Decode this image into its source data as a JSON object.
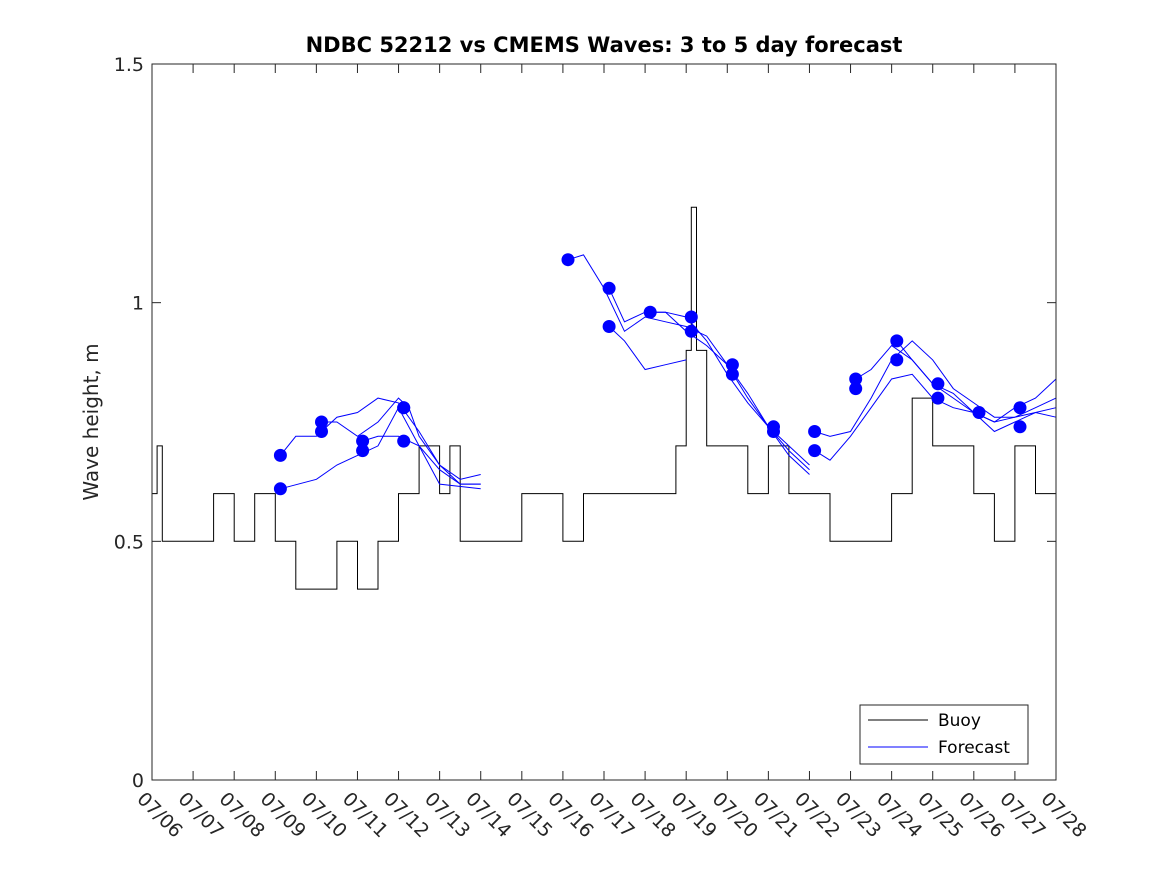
{
  "chart_data": {
    "type": "line",
    "title": "NDBC 52212 vs CMEMS Waves: 3 to 5 day forecast",
    "xlabel": "",
    "ylabel": "Wave height, m",
    "x_type": "date",
    "xlim": [
      "07/06",
      "07/28"
    ],
    "ylim": [
      0,
      1.5
    ],
    "x_tick_labels": [
      "07/06",
      "07/07",
      "07/08",
      "07/09",
      "07/10",
      "07/11",
      "07/12",
      "07/13",
      "07/14",
      "07/15",
      "07/16",
      "07/17",
      "07/18",
      "07/19",
      "07/20",
      "07/21",
      "07/22",
      "07/23",
      "07/24",
      "07/25",
      "07/26",
      "07/27",
      "07/28"
    ],
    "y_ticks": [
      0,
      0.5,
      1,
      1.5
    ],
    "y_tick_labels": [
      "0",
      "0.5",
      "1",
      "1.5"
    ],
    "legend": {
      "position": "bottom-right",
      "entries": [
        "Buoy",
        "Forecast"
      ]
    },
    "colors": {
      "buoy": "#000000",
      "forecast": "#0000ff",
      "marker": "#0000ff"
    },
    "series": [
      {
        "name": "Buoy",
        "x": [
          "07/06 00:00",
          "07/06 03:00",
          "07/06 06:00",
          "07/06 12:00",
          "07/07 00:00",
          "07/07 12:00",
          "07/08 00:00",
          "07/08 12:00",
          "07/09 00:00",
          "07/09 12:00",
          "07/10 00:00",
          "07/10 12:00",
          "07/11 00:00",
          "07/11 12:00",
          "07/12 00:00",
          "07/12 12:00",
          "07/13 00:00",
          "07/13 06:00",
          "07/13 12:00",
          "07/14 00:00",
          "07/14 12:00",
          "07/15 00:00",
          "07/15 12:00",
          "07/16 00:00",
          "07/16 12:00",
          "07/17 00:00",
          "07/17 12:00",
          "07/18 00:00",
          "07/18 12:00",
          "07/18 18:00",
          "07/19 00:00",
          "07/19 03:00",
          "07/19 06:00",
          "07/19 12:00",
          "07/20 00:00",
          "07/20 12:00",
          "07/21 00:00",
          "07/21 12:00",
          "07/22 00:00",
          "07/22 12:00",
          "07/23 00:00",
          "07/23 12:00",
          "07/24 00:00",
          "07/24 12:00",
          "07/25 00:00",
          "07/25 12:00",
          "07/26 00:00",
          "07/26 12:00",
          "07/27 00:00",
          "07/27 12:00",
          "07/28 00:00"
        ],
        "y": [
          0.6,
          0.7,
          0.5,
          0.5,
          0.5,
          0.6,
          0.5,
          0.6,
          0.5,
          0.4,
          0.4,
          0.5,
          0.4,
          0.5,
          0.6,
          0.7,
          0.6,
          0.7,
          0.5,
          0.5,
          0.5,
          0.6,
          0.6,
          0.5,
          0.6,
          0.6,
          0.6,
          0.6,
          0.6,
          0.7,
          0.9,
          1.2,
          0.9,
          0.7,
          0.7,
          0.6,
          0.7,
          0.6,
          0.6,
          0.5,
          0.5,
          0.5,
          0.6,
          0.8,
          0.7,
          0.7,
          0.6,
          0.5,
          0.7,
          0.6,
          0.7
        ]
      },
      {
        "name": "Forecast",
        "segments": [
          {
            "x": [
              "07/09 03:00",
              "07/09 12:00",
              "07/10 00:00",
              "07/10 12:00",
              "07/11 00:00",
              "07/11 12:00",
              "07/12 00:00",
              "07/12 12:00",
              "07/13 00:00",
              "07/13 12:00",
              "07/14 00:00"
            ],
            "y": [
              0.68,
              0.72,
              0.72,
              0.76,
              0.77,
              0.8,
              0.79,
              0.73,
              0.66,
              0.62,
              0.62
            ]
          },
          {
            "x": [
              "07/09 03:00",
              "07/10 00:00",
              "07/10 12:00",
              "07/11 00:00",
              "07/11 12:00",
              "07/12 00:00",
              "07/12 12:00",
              "07/13 00:00",
              "07/14 00:00"
            ],
            "y": [
              0.61,
              0.63,
              0.66,
              0.68,
              0.7,
              0.78,
              0.7,
              0.62,
              0.61
            ]
          },
          {
            "x": [
              "07/10 03:00",
              "07/10 12:00",
              "07/11 00:00",
              "07/11 12:00",
              "07/12 00:00",
              "07/12 06:00",
              "07/12 12:00",
              "07/13 00:00",
              "07/13 12:00",
              "07/14 00:00"
            ],
            "y": [
              0.75,
              0.75,
              0.72,
              0.75,
              0.8,
              0.78,
              0.72,
              0.66,
              0.63,
              0.64
            ]
          },
          {
            "x": [
              "07/11 03:00",
              "07/11 12:00",
              "07/12 00:00",
              "07/12 12:00",
              "07/13 00:00",
              "07/13 12:00",
              "07/14 00:00"
            ],
            "y": [
              0.71,
              0.72,
              0.72,
              0.7,
              0.65,
              0.62,
              0.62
            ]
          },
          {
            "x": [
              "07/16 03:00",
              "07/16 12:00",
              "07/17 00:00",
              "07/17 12:00",
              "07/18 00:00",
              "07/18 12:00",
              "07/19 00:00",
              "07/19 12:00",
              "07/20 00:00",
              "07/20 12:00",
              "07/21 00:00",
              "07/21 12:00",
              "07/22 00:00"
            ],
            "y": [
              1.09,
              1.1,
              1.03,
              0.94,
              0.97,
              0.96,
              0.95,
              0.93,
              0.87,
              0.8,
              0.74,
              0.69,
              0.65
            ]
          },
          {
            "x": [
              "07/17 03:00",
              "07/17 12:00",
              "07/18 00:00",
              "07/18 12:00",
              "07/19 00:00"
            ],
            "y": [
              0.95,
              0.92,
              0.86,
              0.87,
              0.88
            ]
          },
          {
            "x": [
              "07/17 03:00",
              "07/17 12:00",
              "07/18 00:00",
              "07/18 12:00",
              "07/19 00:00",
              "07/19 12:00",
              "07/20 00:00",
              "07/20 12:00",
              "07/21 00:00",
              "07/21 12:00",
              "07/22 00:00"
            ],
            "y": [
              1.03,
              0.96,
              0.98,
              0.98,
              0.97,
              0.92,
              0.85,
              0.79,
              0.74,
              0.68,
              0.64
            ]
          },
          {
            "x": [
              "07/18 03:00",
              "07/18 12:00",
              "07/19 00:00",
              "07/19 12:00",
              "07/20 00:00",
              "07/20 12:00",
              "07/21 00:00",
              "07/21 12:00",
              "07/22 00:00"
            ],
            "y": [
              0.98,
              0.98,
              0.94,
              0.91,
              0.87,
              0.81,
              0.74,
              0.7,
              0.66
            ]
          },
          {
            "x": [
              "07/22 03:00",
              "07/22 12:00",
              "07/23 00:00",
              "07/23 12:00",
              "07/24 00:00",
              "07/24 12:00",
              "07/25 00:00",
              "07/25 12:00",
              "07/26 00:00",
              "07/26 12:00",
              "07/27 00:00",
              "07/27 12:00",
              "07/28 00:00"
            ],
            "y": [
              0.73,
              0.72,
              0.73,
              0.8,
              0.88,
              0.92,
              0.88,
              0.82,
              0.79,
              0.76,
              0.76,
              0.78,
              0.8
            ]
          },
          {
            "x": [
              "07/22 03:00",
              "07/22 12:00",
              "07/23 00:00",
              "07/23 12:00",
              "07/24 00:00",
              "07/24 12:00",
              "07/25 00:00",
              "07/25 12:00",
              "07/26 00:00",
              "07/26 12:00",
              "07/27 00:00",
              "07/27 12:00",
              "07/28 00:00"
            ],
            "y": [
              0.69,
              0.67,
              0.72,
              0.78,
              0.84,
              0.85,
              0.8,
              0.78,
              0.77,
              0.73,
              0.75,
              0.77,
              0.76
            ]
          },
          {
            "x": [
              "07/23 03:00",
              "07/23 12:00",
              "07/24 00:00",
              "07/24 12:00",
              "07/25 00:00",
              "07/25 12:00",
              "07/26 00:00",
              "07/26 12:00",
              "07/27 00:00",
              "07/27 12:00",
              "07/28 00:00"
            ],
            "y": [
              0.84,
              0.86,
              0.91,
              0.88,
              0.83,
              0.8,
              0.77,
              0.75,
              0.78,
              0.8,
              0.84
            ]
          },
          {
            "x": [
              "07/24 03:00",
              "07/24 12:00",
              "07/25 00:00",
              "07/25 12:00",
              "07/26 00:00",
              "07/26 12:00",
              "07/27 00:00",
              "07/27 12:00",
              "07/28 00:00"
            ],
            "y": [
              0.92,
              0.88,
              0.83,
              0.81,
              0.77,
              0.75,
              0.76,
              0.77,
              0.78
            ]
          }
        ]
      }
    ],
    "forecast_markers": {
      "x": [
        "07/09 03:00",
        "07/09 03:00",
        "07/10 03:00",
        "07/10 03:00",
        "07/11 03:00",
        "07/11 03:00",
        "07/12 03:00",
        "07/12 03:00",
        "07/12 03:00",
        "07/16 03:00",
        "07/17 03:00",
        "07/17 03:00",
        "07/18 03:00",
        "07/19 03:00",
        "07/19 03:00",
        "07/20 03:00",
        "07/20 03:00",
        "07/21 03:00",
        "07/21 03:00",
        "07/22 03:00",
        "07/22 03:00",
        "07/23 03:00",
        "07/23 03:00",
        "07/24 03:00",
        "07/24 03:00",
        "07/25 03:00",
        "07/25 03:00",
        "07/26 03:00",
        "07/27 03:00",
        "07/27 03:00"
      ],
      "y": [
        0.68,
        0.61,
        0.75,
        0.73,
        0.71,
        0.69,
        0.78,
        0.78,
        0.71,
        1.09,
        1.03,
        0.95,
        0.98,
        0.97,
        0.94,
        0.87,
        0.85,
        0.74,
        0.73,
        0.73,
        0.69,
        0.84,
        0.82,
        0.92,
        0.88,
        0.83,
        0.8,
        0.77,
        0.78,
        0.74
      ]
    }
  }
}
